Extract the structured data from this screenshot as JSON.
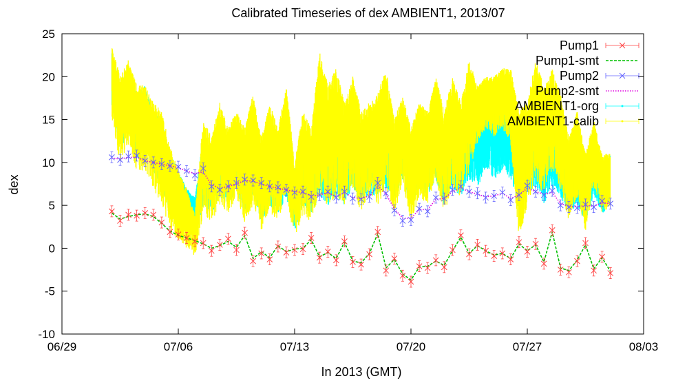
{
  "chart_data": {
    "type": "line",
    "title": "Calibrated Timeseries of dex AMBIENT1, 2013/07",
    "xlabel": "In 2013 (GMT)",
    "ylabel": "dex",
    "xlim": [
      "2013-06-29",
      "2013-08-03"
    ],
    "ylim": [
      -10,
      25
    ],
    "x_ticks": [
      "06/29",
      "07/06",
      "07/13",
      "07/20",
      "07/27",
      "08/03"
    ],
    "y_ticks": [
      "-10",
      "-5",
      "0",
      "5",
      "10",
      "15",
      "20",
      "25"
    ],
    "legend_position": "top-right",
    "colors": {
      "Pump1": "#ff4040",
      "Pump1-smt": "#00c000",
      "Pump2": "#6060ff",
      "Pump2-smt": "#e000e0",
      "AMBIENT1-org": "#00ffff",
      "AMBIENT1-calib": "#ffff00"
    },
    "series": [
      {
        "name": "Pump1",
        "style": "points-errorbars",
        "x": [
          "2013-07-02 00:00",
          "2013-07-02 12:00",
          "2013-07-03 00:00",
          "2013-07-03 12:00",
          "2013-07-04 00:00",
          "2013-07-04 12:00",
          "2013-07-05 00:00",
          "2013-07-05 12:00",
          "2013-07-06 00:00",
          "2013-07-06 12:00",
          "2013-07-07 00:00",
          "2013-07-07 12:00",
          "2013-07-08 00:00",
          "2013-07-08 12:00",
          "2013-07-09 00:00",
          "2013-07-09 12:00",
          "2013-07-10 00:00",
          "2013-07-10 12:00",
          "2013-07-11 00:00",
          "2013-07-11 12:00",
          "2013-07-12 00:00",
          "2013-07-12 12:00",
          "2013-07-13 00:00",
          "2013-07-13 12:00",
          "2013-07-14 00:00",
          "2013-07-14 12:00",
          "2013-07-15 00:00",
          "2013-07-15 12:00",
          "2013-07-16 00:00",
          "2013-07-16 12:00",
          "2013-07-17 00:00",
          "2013-07-17 12:00",
          "2013-07-18 00:00",
          "2013-07-18 12:00",
          "2013-07-19 00:00",
          "2013-07-19 12:00",
          "2013-07-20 00:00",
          "2013-07-20 12:00",
          "2013-07-21 00:00",
          "2013-07-21 12:00",
          "2013-07-22 00:00",
          "2013-07-22 12:00",
          "2013-07-23 00:00",
          "2013-07-23 12:00",
          "2013-07-24 00:00",
          "2013-07-24 12:00",
          "2013-07-25 00:00",
          "2013-07-25 12:00",
          "2013-07-26 00:00",
          "2013-07-26 12:00",
          "2013-07-27 00:00",
          "2013-07-27 12:00",
          "2013-07-28 00:00",
          "2013-07-28 12:00",
          "2013-07-29 00:00",
          "2013-07-29 12:00",
          "2013-07-30 00:00",
          "2013-07-30 12:00",
          "2013-07-31 00:00",
          "2013-07-31 12:00",
          "2013-08-01 00:00"
        ],
        "values": [
          4.3,
          3.2,
          3.9,
          3.8,
          4.1,
          3.9,
          3.0,
          1.9,
          1.6,
          1.2,
          0.8,
          0.6,
          -0.3,
          0.4,
          1.1,
          -0.2,
          1.8,
          -1.5,
          -0.6,
          -1.3,
          0.2,
          -0.5,
          -0.2,
          -0.1,
          1.2,
          -1.1,
          -0.4,
          -1.4,
          0.8,
          -1.6,
          -1.9,
          -0.7,
          1.9,
          -2.6,
          -1.2,
          -3.2,
          -3.9,
          -2.1,
          -2.3,
          -1.4,
          -2.2,
          -0.2,
          1.5,
          -0.7,
          0.4,
          -0.3,
          -0.9,
          -0.6,
          -1.3,
          0.7,
          -0.4,
          0.5,
          -1.8,
          2.1,
          -2.5,
          -2.8,
          -1.5,
          0.6,
          -2.6,
          -1.0,
          -2.9
        ]
      },
      {
        "name": "Pump1-smt",
        "style": "dashed-line",
        "x": [
          "2013-07-02 00:00",
          "2013-07-02 12:00",
          "2013-07-03 00:00",
          "2013-07-03 12:00",
          "2013-07-04 00:00",
          "2013-07-04 12:00",
          "2013-07-05 00:00",
          "2013-07-05 12:00",
          "2013-07-06 00:00",
          "2013-07-06 12:00",
          "2013-07-07 00:00",
          "2013-07-07 12:00",
          "2013-07-08 00:00",
          "2013-07-08 12:00",
          "2013-07-09 00:00",
          "2013-07-09 12:00",
          "2013-07-10 00:00",
          "2013-07-10 12:00",
          "2013-07-11 00:00",
          "2013-07-11 12:00",
          "2013-07-12 00:00",
          "2013-07-12 12:00",
          "2013-07-13 00:00",
          "2013-07-13 12:00",
          "2013-07-14 00:00",
          "2013-07-14 12:00",
          "2013-07-15 00:00",
          "2013-07-15 12:00",
          "2013-07-16 00:00",
          "2013-07-16 12:00",
          "2013-07-17 00:00",
          "2013-07-17 12:00",
          "2013-07-18 00:00",
          "2013-07-18 12:00",
          "2013-07-19 00:00",
          "2013-07-19 12:00",
          "2013-07-20 00:00",
          "2013-07-20 12:00",
          "2013-07-21 00:00",
          "2013-07-21 12:00",
          "2013-07-22 00:00",
          "2013-07-22 12:00",
          "2013-07-23 00:00",
          "2013-07-23 12:00",
          "2013-07-24 00:00",
          "2013-07-24 12:00",
          "2013-07-25 00:00",
          "2013-07-25 12:00",
          "2013-07-26 00:00",
          "2013-07-26 12:00",
          "2013-07-27 00:00",
          "2013-07-27 12:00",
          "2013-07-28 00:00",
          "2013-07-28 12:00",
          "2013-07-29 00:00",
          "2013-07-29 12:00",
          "2013-07-30 00:00",
          "2013-07-30 12:00",
          "2013-07-31 00:00",
          "2013-07-31 12:00",
          "2013-08-01 00:00"
        ],
        "values": [
          4.1,
          3.4,
          3.7,
          3.9,
          4.0,
          3.7,
          2.9,
          2.0,
          1.5,
          1.2,
          0.9,
          0.5,
          0.0,
          0.3,
          0.8,
          0.1,
          1.5,
          -1.2,
          -0.4,
          -1.1,
          0.3,
          -0.4,
          -0.1,
          0.0,
          1.0,
          -1.0,
          -0.5,
          -1.2,
          0.7,
          -1.5,
          -1.7,
          -0.6,
          1.7,
          -2.3,
          -1.3,
          -3.0,
          -3.7,
          -2.2,
          -2.1,
          -1.5,
          -2.0,
          -0.3,
          1.3,
          -0.6,
          0.3,
          -0.3,
          -0.8,
          -0.6,
          -1.2,
          0.5,
          -0.3,
          0.4,
          -1.6,
          1.9,
          -2.3,
          -2.6,
          -1.4,
          0.4,
          -2.4,
          -1.1,
          -2.7
        ]
      },
      {
        "name": "Pump2",
        "style": "points-errorbars",
        "x": [
          "2013-07-02 00:00",
          "2013-07-02 12:00",
          "2013-07-03 00:00",
          "2013-07-03 12:00",
          "2013-07-04 00:00",
          "2013-07-04 12:00",
          "2013-07-05 00:00",
          "2013-07-05 12:00",
          "2013-07-06 00:00",
          "2013-07-06 12:00",
          "2013-07-07 00:00",
          "2013-07-07 12:00",
          "2013-07-08 00:00",
          "2013-07-08 12:00",
          "2013-07-09 00:00",
          "2013-07-09 12:00",
          "2013-07-10 00:00",
          "2013-07-10 12:00",
          "2013-07-11 00:00",
          "2013-07-11 12:00",
          "2013-07-12 00:00",
          "2013-07-12 12:00",
          "2013-07-13 00:00",
          "2013-07-13 12:00",
          "2013-07-14 00:00",
          "2013-07-14 12:00",
          "2013-07-15 00:00",
          "2013-07-15 12:00",
          "2013-07-16 00:00",
          "2013-07-16 12:00",
          "2013-07-17 00:00",
          "2013-07-17 12:00",
          "2013-07-18 00:00",
          "2013-07-18 12:00",
          "2013-07-19 00:00",
          "2013-07-19 12:00",
          "2013-07-20 00:00",
          "2013-07-20 12:00",
          "2013-07-21 00:00",
          "2013-07-21 12:00",
          "2013-07-22 00:00",
          "2013-07-22 12:00",
          "2013-07-23 00:00",
          "2013-07-23 12:00",
          "2013-07-24 00:00",
          "2013-07-24 12:00",
          "2013-07-25 00:00",
          "2013-07-25 12:00",
          "2013-07-26 00:00",
          "2013-07-26 12:00",
          "2013-07-27 00:00",
          "2013-07-27 12:00",
          "2013-07-28 00:00",
          "2013-07-28 12:00",
          "2013-07-29 00:00",
          "2013-07-29 12:00",
          "2013-07-30 00:00",
          "2013-07-30 12:00",
          "2013-07-31 00:00",
          "2013-07-31 12:00",
          "2013-08-01 00:00"
        ],
        "values": [
          10.6,
          10.3,
          10.7,
          10.8,
          10.2,
          10.0,
          9.8,
          9.6,
          9.5,
          9.0,
          8.5,
          9.3,
          7.2,
          6.8,
          7.2,
          7.6,
          8.0,
          7.9,
          7.6,
          7.2,
          7.1,
          6.8,
          6.5,
          6.6,
          6.0,
          6.2,
          6.6,
          5.9,
          6.6,
          5.8,
          5.7,
          6.0,
          7.6,
          6.4,
          4.4,
          3.2,
          3.3,
          4.6,
          4.3,
          5.9,
          5.8,
          6.8,
          7.2,
          6.6,
          6.4,
          5.9,
          6.1,
          6.5,
          5.6,
          6.2,
          7.3,
          6.6,
          6.2,
          6.7,
          5.0,
          4.8,
          4.7,
          5.1,
          4.8,
          5.5,
          5.2
        ]
      },
      {
        "name": "Pump2-smt",
        "style": "dotted-line",
        "x": [
          "2013-07-02 00:00",
          "2013-07-02 12:00",
          "2013-07-03 00:00",
          "2013-07-03 12:00",
          "2013-07-04 00:00",
          "2013-07-04 12:00",
          "2013-07-05 00:00",
          "2013-07-05 12:00",
          "2013-07-06 00:00",
          "2013-07-06 12:00",
          "2013-07-07 00:00",
          "2013-07-07 12:00",
          "2013-07-08 00:00",
          "2013-07-08 12:00",
          "2013-07-09 00:00",
          "2013-07-09 12:00",
          "2013-07-10 00:00",
          "2013-07-10 12:00",
          "2013-07-11 00:00",
          "2013-07-11 12:00",
          "2013-07-12 00:00",
          "2013-07-12 12:00",
          "2013-07-13 00:00",
          "2013-07-13 12:00",
          "2013-07-14 00:00",
          "2013-07-14 12:00",
          "2013-07-15 00:00",
          "2013-07-15 12:00",
          "2013-07-16 00:00",
          "2013-07-16 12:00",
          "2013-07-17 00:00",
          "2013-07-17 12:00",
          "2013-07-18 00:00",
          "2013-07-18 12:00",
          "2013-07-19 00:00",
          "2013-07-19 12:00",
          "2013-07-20 00:00",
          "2013-07-20 12:00",
          "2013-07-21 00:00",
          "2013-07-21 12:00",
          "2013-07-22 00:00",
          "2013-07-22 12:00",
          "2013-07-23 00:00",
          "2013-07-23 12:00",
          "2013-07-24 00:00",
          "2013-07-24 12:00",
          "2013-07-25 00:00",
          "2013-07-25 12:00",
          "2013-07-26 00:00",
          "2013-07-26 12:00",
          "2013-07-27 00:00",
          "2013-07-27 12:00",
          "2013-07-28 00:00",
          "2013-07-28 12:00",
          "2013-07-29 00:00",
          "2013-07-29 12:00",
          "2013-07-30 00:00",
          "2013-07-30 12:00",
          "2013-07-31 00:00",
          "2013-07-31 12:00",
          "2013-08-01 00:00"
        ],
        "values": [
          10.5,
          10.4,
          10.6,
          10.6,
          10.2,
          10.0,
          9.8,
          9.6,
          9.4,
          9.0,
          8.7,
          8.9,
          7.4,
          7.0,
          7.2,
          7.5,
          7.9,
          7.8,
          7.5,
          7.2,
          7.0,
          6.8,
          6.6,
          6.5,
          6.1,
          6.2,
          6.5,
          6.0,
          6.5,
          5.9,
          5.8,
          6.1,
          7.3,
          6.3,
          4.6,
          3.5,
          3.5,
          4.5,
          4.5,
          5.7,
          5.8,
          6.6,
          7.0,
          6.6,
          6.3,
          6.0,
          6.1,
          6.4,
          5.8,
          6.2,
          7.0,
          6.6,
          6.3,
          6.5,
          5.2,
          4.9,
          4.8,
          5.0,
          4.9,
          5.3,
          5.2
        ]
      },
      {
        "name": "AMBIENT1-org",
        "style": "dense-points-errorbars",
        "x": [
          "2013-07-02 00:00",
          "2013-07-02 12:00",
          "2013-07-03 00:00",
          "2013-07-03 12:00",
          "2013-07-04 00:00",
          "2013-07-04 12:00",
          "2013-07-05 00:00",
          "2013-07-05 12:00",
          "2013-07-06 00:00",
          "2013-07-06 12:00",
          "2013-07-07 00:00",
          "2013-07-07 12:00",
          "2013-07-08 00:00",
          "2013-07-08 12:00",
          "2013-07-09 00:00",
          "2013-07-09 12:00",
          "2013-07-10 00:00",
          "2013-07-10 12:00",
          "2013-07-11 00:00",
          "2013-07-11 12:00",
          "2013-07-12 00:00",
          "2013-07-12 12:00",
          "2013-07-13 00:00",
          "2013-07-13 12:00",
          "2013-07-14 00:00",
          "2013-07-14 12:00",
          "2013-07-15 00:00",
          "2013-07-15 12:00",
          "2013-07-16 00:00",
          "2013-07-16 12:00",
          "2013-07-17 00:00",
          "2013-07-17 12:00",
          "2013-07-18 00:00",
          "2013-07-18 12:00",
          "2013-07-19 00:00",
          "2013-07-19 12:00",
          "2013-07-20 00:00",
          "2013-07-20 12:00",
          "2013-07-21 00:00",
          "2013-07-21 12:00",
          "2013-07-22 00:00",
          "2013-07-22 12:00",
          "2013-07-23 00:00",
          "2013-07-23 12:00",
          "2013-07-24 00:00",
          "2013-07-24 12:00",
          "2013-07-25 00:00",
          "2013-07-25 12:00",
          "2013-07-26 00:00",
          "2013-07-26 12:00",
          "2013-07-27 00:00",
          "2013-07-27 12:00",
          "2013-07-28 00:00",
          "2013-07-28 12:00",
          "2013-07-29 00:00",
          "2013-07-29 12:00",
          "2013-07-30 00:00",
          "2013-07-30 12:00",
          "2013-07-31 00:00",
          "2013-07-31 12:00",
          "2013-08-01 00:00"
        ],
        "low": [
          16,
          11,
          14,
          10,
          12,
          9,
          7,
          4,
          3,
          2,
          1,
          5,
          4,
          6,
          5,
          7,
          4,
          6,
          3,
          5,
          4,
          6,
          2,
          5,
          4,
          6,
          5,
          6,
          5,
          7,
          5,
          6,
          6,
          7,
          6,
          8,
          5,
          7,
          6,
          8,
          5,
          7,
          6,
          8,
          7,
          9,
          8,
          9,
          8,
          4,
          6,
          7,
          5,
          7,
          6,
          4,
          5,
          3,
          6,
          4,
          5
        ],
        "high": [
          23,
          19,
          21,
          18,
          19,
          16,
          15,
          11,
          9,
          7,
          6,
          13,
          11,
          14,
          12,
          13,
          12,
          15,
          11,
          13,
          12,
          15,
          9,
          13,
          12,
          16,
          14,
          15,
          14,
          16,
          13,
          14,
          14,
          16,
          13,
          15,
          12,
          14,
          13,
          15,
          13,
          15,
          13,
          16,
          16,
          17,
          16,
          17,
          16,
          13,
          14,
          15,
          13,
          14,
          13,
          11,
          12,
          10,
          12,
          10,
          11
        ]
      },
      {
        "name": "AMBIENT1-calib",
        "style": "dense-points-errorbars",
        "x": [
          "2013-07-02 00:00",
          "2013-07-02 12:00",
          "2013-07-03 00:00",
          "2013-07-03 12:00",
          "2013-07-04 00:00",
          "2013-07-04 12:00",
          "2013-07-05 00:00",
          "2013-07-05 12:00",
          "2013-07-06 00:00",
          "2013-07-06 12:00",
          "2013-07-07 00:00",
          "2013-07-07 12:00",
          "2013-07-08 00:00",
          "2013-07-08 12:00",
          "2013-07-09 00:00",
          "2013-07-09 12:00",
          "2013-07-10 00:00",
          "2013-07-10 12:00",
          "2013-07-11 00:00",
          "2013-07-11 12:00",
          "2013-07-12 00:00",
          "2013-07-12 12:00",
          "2013-07-13 00:00",
          "2013-07-13 12:00",
          "2013-07-14 00:00",
          "2013-07-14 12:00",
          "2013-07-15 00:00",
          "2013-07-15 12:00",
          "2013-07-16 00:00",
          "2013-07-16 12:00",
          "2013-07-17 00:00",
          "2013-07-17 12:00",
          "2013-07-18 00:00",
          "2013-07-18 12:00",
          "2013-07-19 00:00",
          "2013-07-19 12:00",
          "2013-07-20 00:00",
          "2013-07-20 12:00",
          "2013-07-21 00:00",
          "2013-07-21 12:00",
          "2013-07-22 00:00",
          "2013-07-22 12:00",
          "2013-07-23 00:00",
          "2013-07-23 12:00",
          "2013-07-24 00:00",
          "2013-07-24 12:00",
          "2013-07-25 00:00",
          "2013-07-25 12:00",
          "2013-07-26 00:00",
          "2013-07-26 12:00",
          "2013-07-27 00:00",
          "2013-07-27 12:00",
          "2013-07-28 00:00",
          "2013-07-28 12:00",
          "2013-07-29 00:00",
          "2013-07-29 12:00",
          "2013-07-30 00:00",
          "2013-07-30 12:00",
          "2013-07-31 00:00",
          "2013-07-31 12:00",
          "2013-08-01 00:00"
        ],
        "low": [
          14,
          10,
          12,
          9,
          9,
          7,
          5,
          2,
          1,
          0,
          -1,
          4,
          3,
          5,
          4,
          6,
          3,
          5,
          2,
          4,
          3,
          6,
          1,
          4,
          3,
          6,
          5,
          6,
          5,
          7,
          4,
          6,
          5,
          7,
          4,
          7,
          3,
          6,
          5,
          8,
          4,
          7,
          6,
          9,
          12,
          14,
          13,
          14,
          12,
          1,
          5,
          8,
          6,
          9,
          7,
          3,
          6,
          2,
          7,
          4,
          5
        ],
        "high": [
          24,
          20,
          22,
          19,
          19,
          17,
          16,
          12,
          9,
          7,
          4,
          15,
          13,
          17,
          14,
          16,
          14,
          18,
          13,
          17,
          14,
          19,
          10,
          16,
          14,
          23,
          19,
          21,
          17,
          20,
          16,
          17,
          18,
          21,
          15,
          18,
          14,
          17,
          16,
          20,
          16,
          20,
          17,
          22,
          19,
          20,
          20,
          21,
          21,
          16,
          17,
          22,
          19,
          21,
          18,
          13,
          16,
          11,
          15,
          11,
          11
        ]
      }
    ]
  }
}
